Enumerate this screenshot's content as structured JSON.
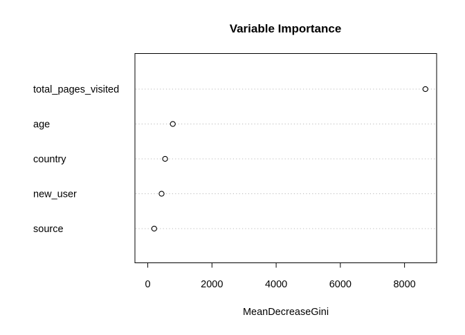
{
  "chart_data": {
    "type": "scatter",
    "title": "Variable Importance",
    "xlabel": "MeanDecreaseGini",
    "ylabel": "",
    "xlim": [
      -400,
      9000
    ],
    "xticks": [
      0,
      2000,
      4000,
      6000,
      8000
    ],
    "xtick_labels": [
      "0",
      "2000",
      "4000",
      "6000",
      "8000"
    ],
    "grid": "dotted horizontal guide line per variable",
    "legend": "none",
    "marker": "open circle",
    "categories": [
      "total_pages_visited",
      "age",
      "country",
      "new_user",
      "source"
    ],
    "values": [
      8650,
      780,
      540,
      430,
      200
    ]
  }
}
